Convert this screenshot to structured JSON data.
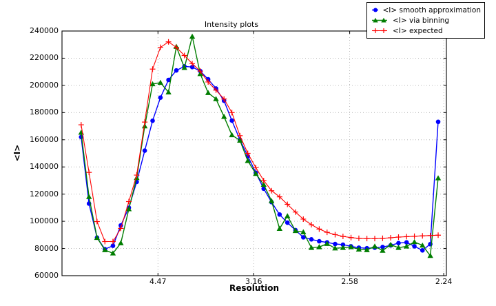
{
  "chart_data": {
    "type": "line",
    "title": "Intensity plots",
    "xlabel": "Resolution",
    "ylabel": "<I>",
    "grid": "dotted",
    "legend_position": "upper-right-outside",
    "x_axis": {
      "unit": "1/d^2 (resolution in angstroms, decreasing to the right)",
      "min": 0.0,
      "max": 0.2007,
      "ticks": [
        {
          "label": "4.47",
          "value": 0.0501
        },
        {
          "label": "3.16",
          "value": 0.1001
        },
        {
          "label": "2.58",
          "value": 0.1502
        },
        {
          "label": "2.24",
          "value": 0.1993
        }
      ]
    },
    "y_axis": {
      "min": 60000,
      "max": 240000,
      "tick_step": 20000,
      "ticks": [
        60000,
        80000,
        100000,
        120000,
        140000,
        160000,
        180000,
        200000,
        220000,
        240000
      ],
      "tick_labels": [
        "60000",
        "80000",
        "100000",
        "120000",
        "140000",
        "160000",
        "180000",
        "200000",
        "220000",
        "240000"
      ]
    },
    "x_s2": [
      0.01,
      0.0141,
      0.0183,
      0.0224,
      0.0266,
      0.0307,
      0.0349,
      0.039,
      0.0432,
      0.0473,
      0.0514,
      0.0556,
      0.0597,
      0.0639,
      0.068,
      0.0722,
      0.0763,
      0.0804,
      0.0846,
      0.0887,
      0.0929,
      0.097,
      0.1012,
      0.1053,
      0.1094,
      0.1136,
      0.1177,
      0.1219,
      0.126,
      0.1302,
      0.1343,
      0.1384,
      0.1426,
      0.1467,
      0.1509,
      0.155,
      0.1592,
      0.1633,
      0.1674,
      0.1716,
      0.1757,
      0.1799,
      0.184,
      0.1882,
      0.1923,
      0.1964
    ],
    "series": [
      {
        "name": "<I> smooth approximation",
        "color": "#0000ff",
        "marker": "circle",
        "line_width": 1.4,
        "values": [
          162000,
          113000,
          88000,
          79500,
          82000,
          97000,
          110000,
          129000,
          152000,
          174000,
          191000,
          204000,
          211000,
          214000,
          213500,
          210500,
          204500,
          197700,
          188700,
          174100,
          160000,
          147900,
          135700,
          124000,
          114100,
          105000,
          99000,
          93500,
          88200,
          86700,
          85300,
          84500,
          83300,
          82800,
          81600,
          80600,
          80200,
          80600,
          81100,
          82300,
          84000,
          84500,
          81600,
          78600,
          83200,
          173200
        ]
      },
      {
        "name": "<I> via binning",
        "color": "#007d00",
        "marker": "triangle",
        "line_width": 1.4,
        "values": [
          165300,
          118000,
          87900,
          78900,
          76500,
          84000,
          109000,
          132000,
          170000,
          201000,
          202000,
          195000,
          228500,
          213000,
          236000,
          208500,
          194500,
          190000,
          177000,
          163500,
          159500,
          144500,
          135000,
          127000,
          115000,
          94600,
          103900,
          93000,
          92100,
          80600,
          81100,
          83500,
          80200,
          80600,
          81100,
          79400,
          78900,
          81600,
          78500,
          82800,
          80600,
          81600,
          84800,
          82300,
          74700,
          131800
        ]
      },
      {
        "name": "<I> expected",
        "color": "#ff0000",
        "marker": "plus",
        "line_width": 1.1,
        "values": [
          171000,
          136000,
          99800,
          85100,
          85100,
          94800,
          114500,
          134000,
          173000,
          212000,
          228000,
          232000,
          228000,
          222000,
          216000,
          210500,
          202500,
          196500,
          190000,
          180000,
          163000,
          150000,
          139500,
          130000,
          122500,
          118000,
          112500,
          106800,
          101600,
          97500,
          94300,
          91900,
          90200,
          88900,
          88000,
          87500,
          87300,
          87300,
          87500,
          87900,
          88400,
          88700,
          89000,
          89300,
          89500,
          89800
        ]
      }
    ],
    "style": {
      "grid_color": "#b0b0b0",
      "frame_color": "#000000",
      "background": "#ffffff"
    }
  }
}
